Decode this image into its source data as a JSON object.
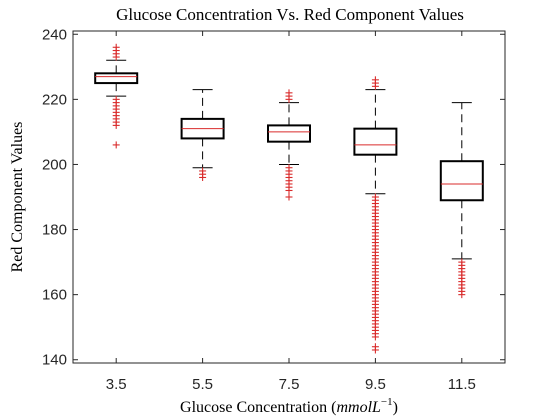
{
  "chart_data": {
    "type": "boxplot",
    "title": "Glucose Concentration Vs. Red Component Values",
    "xlabel_text": "Glucose Concentration (",
    "xlabel_unit": "mmolL",
    "xlabel_exp": "−1",
    "xlabel_close": ")",
    "ylabel": "Red Component Values",
    "ylim": [
      139,
      241
    ],
    "yticks": [
      140,
      160,
      180,
      200,
      220,
      240
    ],
    "grid": false,
    "categories": [
      "3.5",
      "5.5",
      "7.5",
      "9.5",
      "11.5"
    ],
    "boxes": [
      {
        "category": "3.5",
        "q1": 225,
        "median": 227,
        "q3": 228,
        "whisker_low": 221,
        "whisker_high": 232,
        "outliers": [
          206,
          212,
          213,
          214,
          215,
          216,
          217,
          218,
          219,
          220,
          233,
          234,
          235,
          236
        ]
      },
      {
        "category": "5.5",
        "q1": 208,
        "median": 211,
        "q3": 214,
        "whisker_low": 199,
        "whisker_high": 223,
        "outliers": [
          196,
          197,
          198
        ]
      },
      {
        "category": "7.5",
        "q1": 207,
        "median": 210,
        "q3": 212,
        "whisker_low": 200,
        "whisker_high": 219,
        "outliers": [
          190,
          192,
          193,
          194,
          195,
          196,
          197,
          198,
          199,
          220,
          221,
          222
        ]
      },
      {
        "category": "9.5",
        "q1": 203,
        "median": 206,
        "q3": 211,
        "whisker_low": 191,
        "whisker_high": 223,
        "outliers": [
          143,
          144,
          147,
          148,
          149,
          150,
          151,
          152,
          153,
          154,
          155,
          156,
          157,
          158,
          159,
          160,
          161,
          162,
          163,
          164,
          165,
          166,
          167,
          168,
          169,
          170,
          171,
          172,
          173,
          174,
          175,
          176,
          177,
          178,
          179,
          180,
          181,
          182,
          183,
          184,
          185,
          186,
          187,
          188,
          189,
          190,
          224,
          225,
          226
        ]
      },
      {
        "category": "11.5",
        "q1": 189,
        "median": 194,
        "q3": 201,
        "whisker_low": 171,
        "whisker_high": 219,
        "outliers": [
          160,
          161,
          162,
          163,
          164,
          165,
          166,
          167,
          168,
          169,
          170
        ]
      }
    ],
    "colors": {
      "box": "#000000",
      "median": "#d92b2b",
      "outlier": "#d92b2b",
      "axis": "#262626"
    }
  }
}
